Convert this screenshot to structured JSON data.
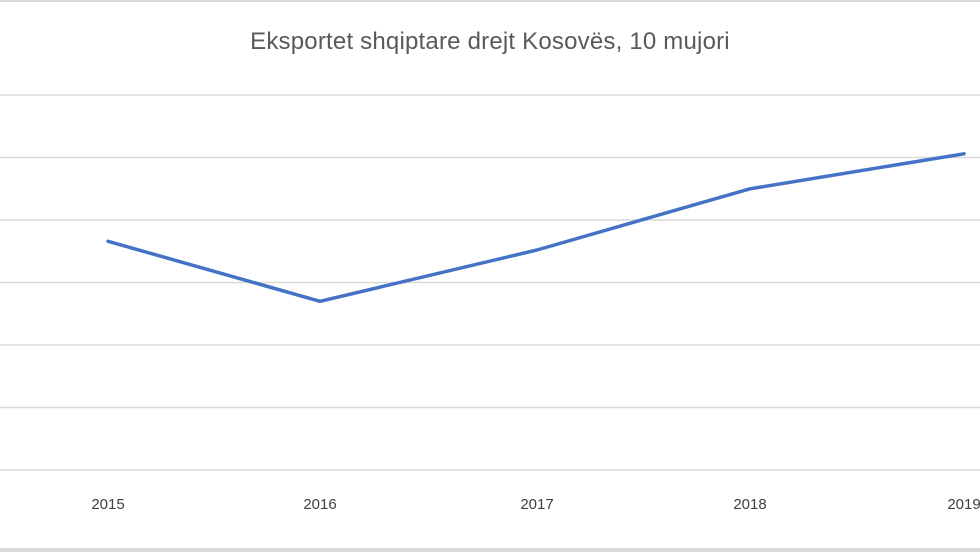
{
  "chart_data": {
    "type": "line",
    "title": "Eksportet shqiptare drejt Kosovës, 10 mujori",
    "xlabel": "",
    "ylabel": "",
    "categories": [
      "2015",
      "2016",
      "2017",
      "2018",
      "2019"
    ],
    "series": [
      {
        "name": "Eksportet",
        "values": [
          3.66,
          2.7,
          3.52,
          4.5,
          5.06
        ],
        "color": "#4472c4"
      }
    ],
    "ylim": [
      0,
      6
    ],
    "y_ticks_labeled": false,
    "gridlines": true,
    "gridline_count": 7,
    "legend": "none"
  },
  "colors": {
    "line": "#4472c4",
    "grid": "#d9d9d9",
    "text": "#595959"
  }
}
